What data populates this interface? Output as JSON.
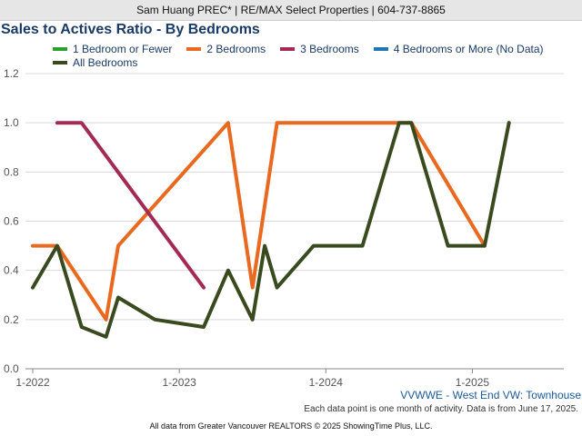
{
  "header": {
    "agent_line": "Sam Huang PREC* | RE/MAX Select Properties | 604-737-8865"
  },
  "colors": {
    "title": "#1a3a66",
    "one_bed": "#2ca02c",
    "two_bed": "#e8691f",
    "three_bed": "#a32a52",
    "four_bed": "#1f77b4",
    "all_bed": "#3a4a1f"
  },
  "chart_data": {
    "type": "line",
    "title": "Sales to Actives Ratio - By Bedrooms",
    "subtitle": "VVWWE - West End VW: Townhouse",
    "note": "Each data point is one month of activity. Data is from June 17, 2025.",
    "footer": "All data from Greater Vancouver REALTORS © 2025 ShowingTime Plus, LLC.",
    "y_range": [
      0,
      1.2
    ],
    "y_ticks": [
      "0.0",
      "0.2",
      "0.4",
      "0.6",
      "0.8",
      "1.0",
      "1.2"
    ],
    "y_tick_values": [
      0,
      0.2,
      0.4,
      0.6,
      0.8,
      1.0,
      1.2
    ],
    "x_range": [
      "2022-01",
      "2025-07"
    ],
    "x_ticks": [
      "1-2022",
      "1-2023",
      "1-2024",
      "1-2025"
    ],
    "x_tick_values": [
      "2022-01",
      "2023-01",
      "2024-01",
      "2025-01"
    ],
    "grid": "horizontal",
    "legend_placement": "top",
    "series": [
      {
        "name": "1 Bedroom or Fewer",
        "color": "#2ca02c",
        "points": []
      },
      {
        "name": "2 Bedrooms",
        "color": "#e8691f",
        "points": [
          {
            "x": "2022-01",
            "y": 0.5
          },
          {
            "x": "2022-03",
            "y": 0.5
          },
          {
            "x": "2022-07",
            "y": 0.2
          },
          {
            "x": "2022-08",
            "y": 0.5
          },
          {
            "x": "2023-05",
            "y": 1.0
          },
          {
            "x": "2023-07",
            "y": 0.33
          },
          {
            "x": "2023-09",
            "y": 1.0
          },
          {
            "x": "2024-08",
            "y": 1.0
          },
          {
            "x": "2025-02",
            "y": 0.5
          }
        ]
      },
      {
        "name": "3 Bedrooms",
        "color": "#a32a52",
        "points": [
          {
            "x": "2022-03",
            "y": 1.0
          },
          {
            "x": "2022-05",
            "y": 1.0
          },
          {
            "x": "2023-03",
            "y": 0.33
          }
        ]
      },
      {
        "name": "4 Bedrooms or More (No Data)",
        "color": "#1f77b4",
        "points": []
      },
      {
        "name": "All Bedrooms",
        "color": "#3a4a1f",
        "points": [
          {
            "x": "2022-01",
            "y": 0.33
          },
          {
            "x": "2022-03",
            "y": 0.5
          },
          {
            "x": "2022-05",
            "y": 0.17
          },
          {
            "x": "2022-07",
            "y": 0.13
          },
          {
            "x": "2022-08",
            "y": 0.29
          },
          {
            "x": "2022-11",
            "y": 0.2
          },
          {
            "x": "2023-03",
            "y": 0.17
          },
          {
            "x": "2023-05",
            "y": 0.4
          },
          {
            "x": "2023-07",
            "y": 0.2
          },
          {
            "x": "2023-08",
            "y": 0.5
          },
          {
            "x": "2023-09",
            "y": 0.33
          },
          {
            "x": "2023-12",
            "y": 0.5
          },
          {
            "x": "2024-04",
            "y": 0.5
          },
          {
            "x": "2024-07",
            "y": 1.0
          },
          {
            "x": "2024-08",
            "y": 1.0
          },
          {
            "x": "2024-11",
            "y": 0.5
          },
          {
            "x": "2025-02",
            "y": 0.5
          },
          {
            "x": "2025-04",
            "y": 1.0
          }
        ]
      }
    ]
  }
}
